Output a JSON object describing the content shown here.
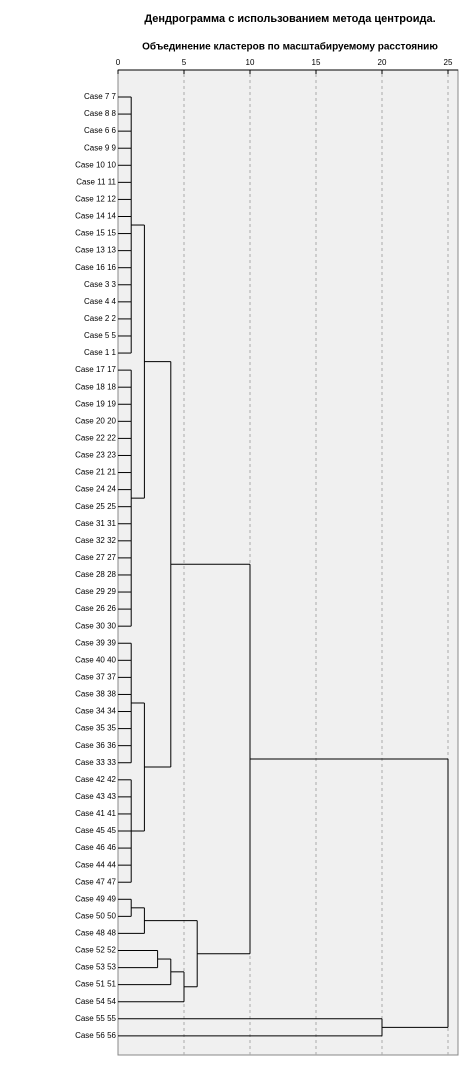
{
  "chart_data": {
    "type": "dendrogram",
    "title": "Дендрограмма с использованием метода центроида.",
    "subtitle": "Объединение кластеров по масштабируемому расстоянию",
    "xlim": [
      0,
      25
    ],
    "xticks": [
      0,
      5,
      10,
      15,
      20,
      25
    ],
    "grid": true,
    "color": "#000000",
    "tree": {
      "height": 25,
      "children": [
        {
          "height": 10,
          "children": [
            {
              "height": 4,
              "children": [
                {
                  "height": 2,
                  "children": [
                    {
                      "height": 1,
                      "children": [
                        "Case 7 7",
                        "Case 8 8",
                        "Case 6 6",
                        "Case 9 9",
                        "Case 10 10",
                        "Case 11 11",
                        "Case 12 12",
                        "Case 14 14",
                        "Case 15 15",
                        "Case 13 13",
                        "Case 16 16",
                        "Case 3 3",
                        "Case 4 4",
                        "Case 2 2",
                        "Case 5 5",
                        "Case 1 1"
                      ]
                    },
                    {
                      "height": 1,
                      "children": [
                        "Case 17 17",
                        "Case 18 18",
                        "Case 19 19",
                        "Case 20 20",
                        "Case 22 22",
                        "Case 23 23",
                        "Case 21 21",
                        "Case 24 24",
                        "Case 25 25",
                        "Case 31 31",
                        "Case 32 32",
                        "Case 27 27",
                        "Case 28 28",
                        "Case 29 29",
                        "Case 26 26",
                        "Case 30 30"
                      ]
                    }
                  ]
                },
                {
                  "height": 2,
                  "children": [
                    {
                      "height": 1,
                      "children": [
                        "Case 39 39",
                        "Case 40 40",
                        "Case 37 37",
                        "Case 38 38",
                        "Case 34 34",
                        "Case 35 35",
                        "Case 36 36",
                        "Case 33 33"
                      ]
                    },
                    {
                      "height": 1,
                      "children": [
                        "Case 42 42",
                        "Case 43 43",
                        "Case 41 41",
                        "Case 45 45",
                        "Case 46 46",
                        "Case 44 44",
                        "Case 47 47"
                      ]
                    }
                  ]
                }
              ]
            },
            {
              "height": 6,
              "children": [
                {
                  "height": 2,
                  "children": [
                    {
                      "height": 1,
                      "children": [
                        "Case 49 49",
                        "Case 50 50"
                      ]
                    },
                    "Case 48 48"
                  ]
                },
                {
                  "height": 5,
                  "children": [
                    {
                      "height": 4,
                      "children": [
                        {
                          "height": 3,
                          "children": [
                            "Case 52 52",
                            "Case 53 53"
                          ]
                        },
                        "Case 51 51"
                      ]
                    },
                    "Case 54 54"
                  ]
                }
              ]
            }
          ]
        },
        {
          "height": 20,
          "children": [
            "Case 55 55",
            "Case 56 56"
          ]
        }
      ]
    }
  }
}
